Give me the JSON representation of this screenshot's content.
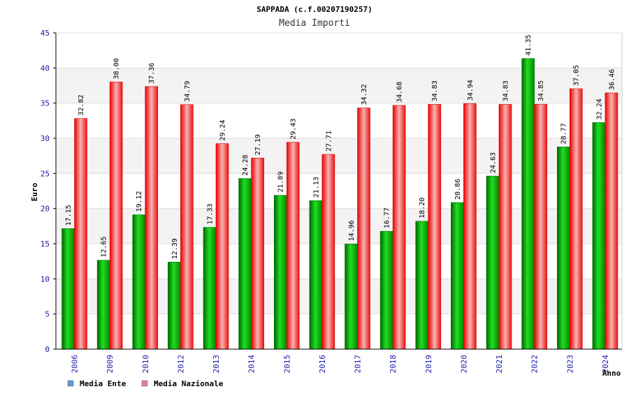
{
  "chart_data": {
    "type": "bar",
    "title": "SAPPADA (c.f.00207190257)",
    "subtitle": "Media Importi",
    "ylabel": "Euro",
    "xlabel": "Anno",
    "ylim": [
      0,
      45
    ],
    "yticks": [
      0,
      5,
      10,
      15,
      20,
      25,
      30,
      35,
      40,
      45
    ],
    "categories": [
      "2006",
      "2009",
      "2010",
      "2012",
      "2013",
      "2014",
      "2015",
      "2016",
      "2017",
      "2018",
      "2019",
      "2020",
      "2021",
      "2022",
      "2023",
      "2024"
    ],
    "series": [
      {
        "name": "Media Ente",
        "legend_color": "#5b9bd5",
        "values": [
          17.15,
          12.65,
          19.12,
          12.39,
          17.33,
          24.28,
          21.89,
          21.13,
          14.96,
          16.77,
          18.2,
          20.86,
          24.63,
          41.35,
          28.77,
          32.24
        ],
        "labels": [
          "17.15",
          "12.65",
          "19.12",
          "12.39",
          "17.33",
          "24.28",
          "21.89",
          "21.13",
          "14.96",
          "16.77",
          "18.20",
          "20.86",
          "24.63",
          "41.35",
          "28.77",
          "32.24"
        ]
      },
      {
        "name": "Media Nazionale",
        "legend_color": "#e0809a",
        "values": [
          32.82,
          38.0,
          37.36,
          34.79,
          29.24,
          27.19,
          29.43,
          27.71,
          34.32,
          34.68,
          34.83,
          34.94,
          34.83,
          34.85,
          37.05,
          36.46
        ],
        "labels": [
          "32.82",
          "38.00",
          "37.36",
          "34.79",
          "29.24",
          "27.19",
          "29.43",
          "27.71",
          "34.32",
          "34.68",
          "34.83",
          "34.94",
          "34.83",
          "34.85",
          "37.05",
          "36.46"
        ]
      }
    ],
    "grid": true,
    "legend_position": "bottom-left"
  }
}
